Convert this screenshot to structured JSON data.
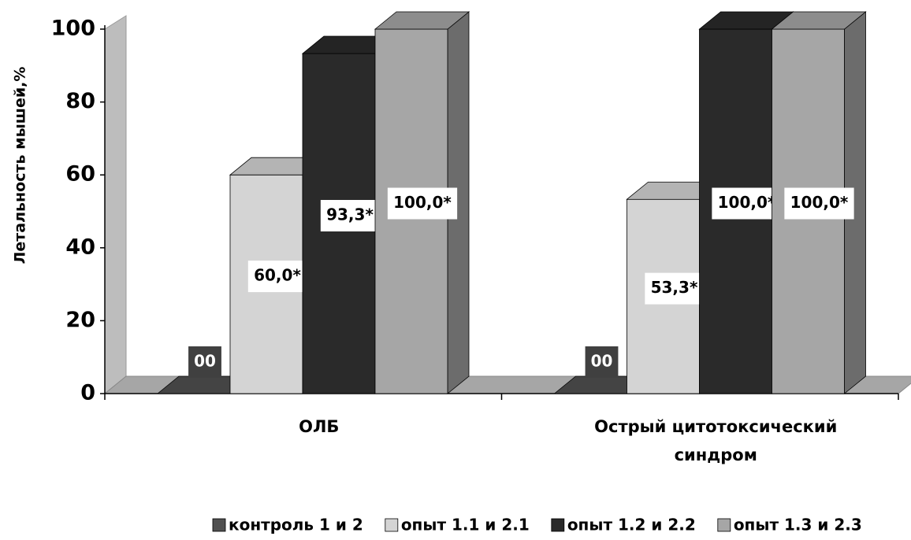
{
  "chart_data": {
    "type": "bar",
    "y_label": "Летальность мышей,%",
    "categories": [
      "ОЛБ",
      "Острый цитотоксический синдром"
    ],
    "series": [
      {
        "name": "контроль 1 и 2",
        "color": "#505050",
        "values": [
          0,
          0
        ],
        "value_labels": [
          "00",
          "00"
        ]
      },
      {
        "name": "опыт 1.1 и 2.1",
        "color": "#d4d4d4",
        "values": [
          60,
          53.3
        ],
        "value_labels": [
          "60,0*",
          "53,3*"
        ]
      },
      {
        "name": "опыт 1.2 и 2.2",
        "color": "#2a2a2a",
        "values": [
          93.3,
          100
        ],
        "value_labels": [
          "93,3*",
          "100,0*"
        ]
      },
      {
        "name": "опыт 1.3 и 2.3",
        "color": "#a6a6a6",
        "values": [
          100,
          100
        ],
        "value_labels": [
          "100,0*",
          "100,0*"
        ]
      }
    ],
    "ylim": [
      0,
      100
    ],
    "yticks": [
      0,
      20,
      40,
      60,
      80,
      100
    ]
  }
}
